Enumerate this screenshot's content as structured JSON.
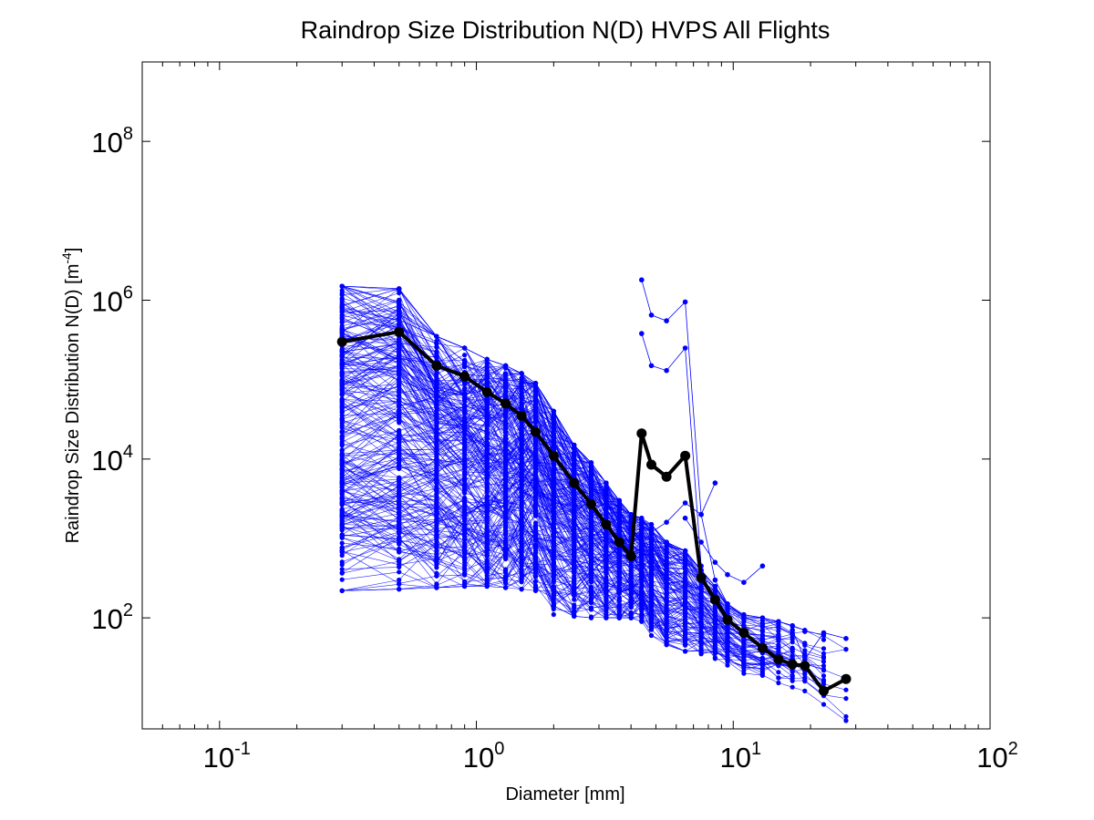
{
  "chart_data": {
    "type": "line",
    "title": "Raindrop Size Distribution N(D) HVPS All Flights",
    "xlabel": "Diameter [mm]",
    "ylabel": {
      "base": "Raindrop Size Distribution N(D) [m",
      "exp": "-4",
      "tail": "]"
    },
    "xscale": "log",
    "yscale": "log",
    "xlim": [
      0.05,
      100
    ],
    "ylim": [
      4,
      1000000000
    ],
    "xticks": [
      {
        "value": 0.1,
        "base": "10",
        "exp": "-1"
      },
      {
        "value": 1,
        "base": "10",
        "exp": "0"
      },
      {
        "value": 10,
        "base": "10",
        "exp": "1"
      },
      {
        "value": 100,
        "base": "10",
        "exp": "2"
      }
    ],
    "yticks": [
      {
        "value": 100,
        "base": "10",
        "exp": "2"
      },
      {
        "value": 10000,
        "base": "10",
        "exp": "4"
      },
      {
        "value": 1000000,
        "base": "10",
        "exp": "6"
      },
      {
        "value": 100000000,
        "base": "10",
        "exp": "8"
      }
    ],
    "grid": false,
    "colors": {
      "flights": "#0000ff",
      "mean": "#000000",
      "axes": "#000000"
    },
    "diameters": [
      0.3,
      0.5,
      0.7,
      0.9,
      1.1,
      1.3,
      1.5,
      1.7,
      2.0,
      2.4,
      2.8,
      3.2,
      3.6,
      4.0,
      4.4,
      4.8,
      5.5,
      6.5,
      7.5,
      8.5,
      9.5,
      11,
      13,
      15,
      17,
      19,
      22.5,
      27.5
    ],
    "series": [
      {
        "values": [
          300000,
          400000,
          150000,
          110000,
          70000,
          50000,
          35000,
          22000,
          11000,
          5000,
          2700,
          1500,
          900,
          600,
          21000,
          8500,
          6000,
          11000,
          320,
          170,
          95,
          65,
          42,
          30,
          26,
          25,
          12,
          17
        ],
        "style": "mean"
      }
    ],
    "flights": {
      "count": 250,
      "envelope_upper": [
        1500000,
        1400000,
        350000,
        250000,
        180000,
        150000,
        120000,
        90000,
        40000,
        15000,
        9000,
        5000,
        3000,
        2000,
        1800,
        1500,
        900,
        700,
        400,
        250,
        150,
        110,
        100,
        90,
        80,
        70,
        65,
        55
      ],
      "envelope_lower": [
        220,
        230,
        240,
        250,
        250,
        240,
        230,
        220,
        110,
        105,
        100,
        100,
        100,
        100,
        90,
        60,
        40,
        38,
        35,
        30,
        25,
        20,
        17,
        15,
        13,
        12,
        8,
        4
      ],
      "outliers": [
        {
          "diameters": [
            4.4,
            4.8,
            5.5,
            6.5,
            7.5,
            8.5,
            9.5
          ],
          "values": [
            1800000,
            650000,
            550000,
            950000,
            2000,
            300,
            150
          ]
        },
        {
          "diameters": [
            4.4,
            4.8,
            5.5,
            6.5,
            7.5
          ],
          "values": [
            380000,
            150000,
            130000,
            250000,
            450
          ]
        },
        {
          "diameters": [
            4.4,
            4.8,
            5.5,
            6.5,
            7.5,
            8.5
          ],
          "values": [
            1500,
            1200,
            1600,
            2800,
            2000,
            5000
          ]
        },
        {
          "diameters": [
            6.5,
            7.5,
            8.5,
            9.5,
            11,
            13
          ],
          "values": [
            1800,
            900,
            500,
            350,
            280,
            450
          ]
        },
        {
          "diameters": [
            17,
            19,
            22.5,
            27.5
          ],
          "values": [
            70,
            30,
            65,
            55
          ]
        }
      ]
    }
  }
}
